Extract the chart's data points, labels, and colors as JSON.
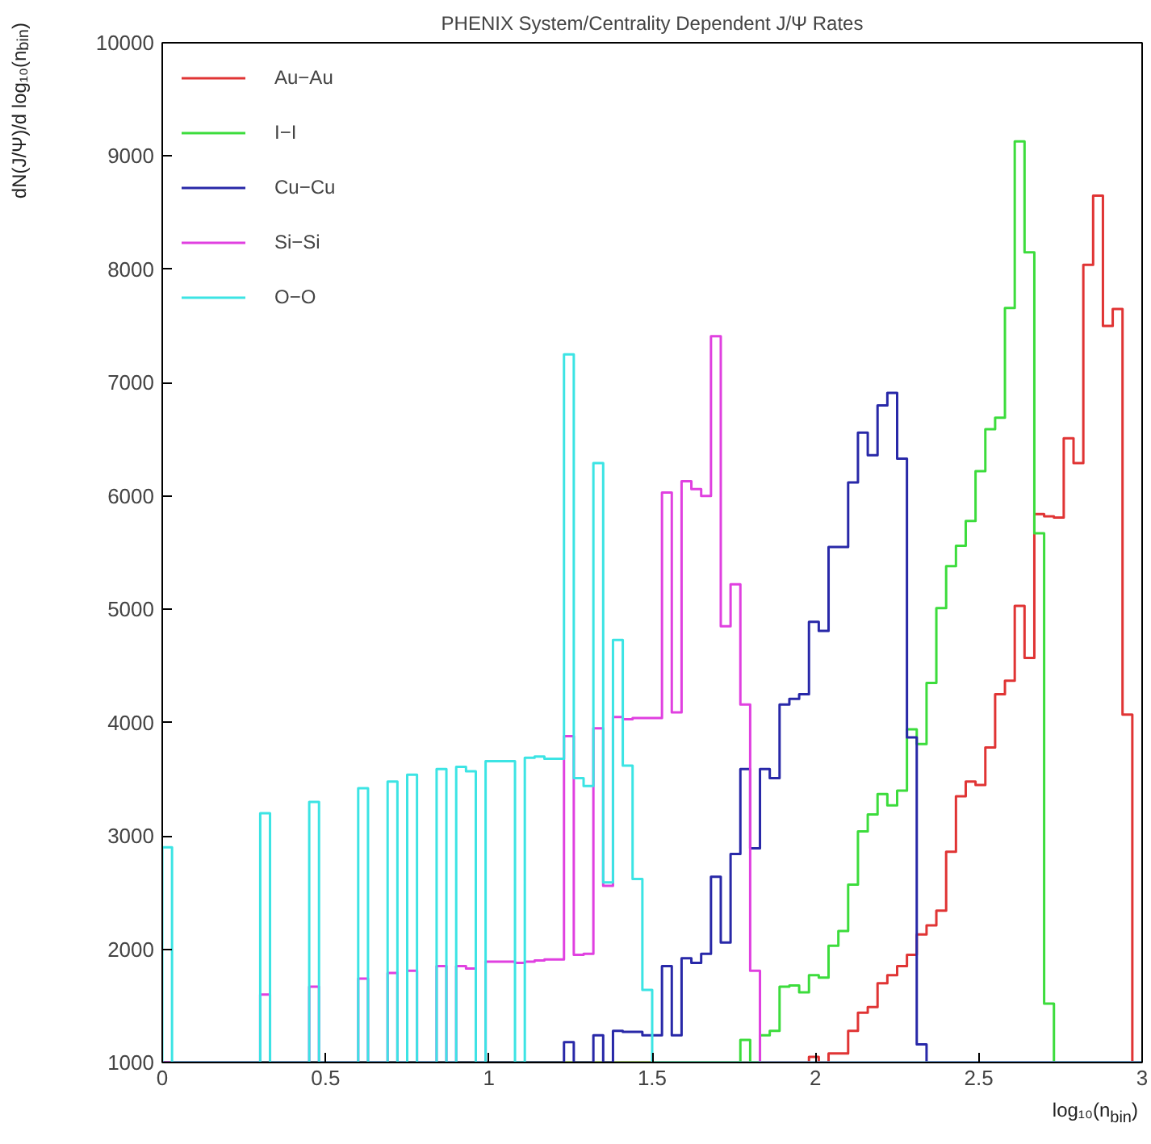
{
  "chart_data": {
    "type": "histogram",
    "title": "PHENIX System/Centrality Dependent J/Ψ Rates",
    "xlabel": "log₁₀(n$_{bin}$)",
    "ylabel": "dN(J/Ψ)/d log₁₀(n$_{bin}$)",
    "xlim": [
      0,
      3
    ],
    "ylim": [
      1000,
      10000
    ],
    "xticks": [
      0,
      0.5,
      1,
      1.5,
      2,
      2.5,
      3
    ],
    "yticks": [
      1000,
      2000,
      3000,
      4000,
      5000,
      6000,
      7000,
      8000,
      9000,
      10000
    ],
    "legend": "top left",
    "bins": [
      0,
      0.03,
      0.06,
      0.09,
      0.12,
      0.15,
      0.18,
      0.21,
      0.24,
      0.27,
      0.3,
      0.33,
      0.36,
      0.39,
      0.42,
      0.45,
      0.48,
      0.51,
      0.54,
      0.57,
      0.6,
      0.63,
      0.66,
      0.69,
      0.72,
      0.75,
      0.78,
      0.81,
      0.84,
      0.87,
      0.9,
      0.93,
      0.96,
      0.99,
      1.02,
      1.05,
      1.08,
      1.11,
      1.14,
      1.17,
      1.2,
      1.23,
      1.26,
      1.29,
      1.32,
      1.35,
      1.38,
      1.41,
      1.44,
      1.47,
      1.5,
      1.53,
      1.56,
      1.59,
      1.62,
      1.65,
      1.68,
      1.71,
      1.74,
      1.77,
      1.8,
      1.83,
      1.86,
      1.89,
      1.92,
      1.95,
      1.98,
      2.01,
      2.04,
      2.07,
      2.1,
      2.13,
      2.16,
      2.19,
      2.22,
      2.25,
      2.28,
      2.31,
      2.34,
      2.37,
      2.4,
      2.43,
      2.46,
      2.49,
      2.52,
      2.55,
      2.58,
      2.61,
      2.64,
      2.67,
      2.7,
      2.73,
      2.76,
      2.79,
      2.82,
      2.85,
      2.88,
      2.91,
      2.94,
      2.97,
      3
    ],
    "series": [
      {
        "name": "Au−Au",
        "color": "#e03434",
        "values": [
          null,
          null,
          null,
          null,
          null,
          null,
          null,
          null,
          null,
          null,
          null,
          null,
          null,
          null,
          null,
          null,
          null,
          null,
          null,
          null,
          null,
          null,
          null,
          null,
          null,
          null,
          null,
          null,
          null,
          null,
          null,
          null,
          null,
          null,
          null,
          null,
          null,
          null,
          null,
          null,
          null,
          null,
          null,
          null,
          null,
          null,
          null,
          null,
          null,
          null,
          null,
          null,
          null,
          null,
          null,
          null,
          null,
          null,
          null,
          null,
          null,
          null,
          null,
          null,
          null,
          null,
          1050,
          null,
          1080,
          1080,
          1280,
          1440,
          1490,
          1700,
          1770,
          1850,
          1950,
          2130,
          2210,
          2340,
          2860,
          3350,
          3480,
          3450,
          3780,
          4250,
          4370,
          5030,
          4570,
          5840,
          5820,
          5810,
          6510,
          6290,
          8040,
          8650,
          7500,
          7650,
          4070,
          null
        ]
      },
      {
        "name": "I−I",
        "color": "#3cdc3c",
        "values": [
          null,
          null,
          null,
          null,
          null,
          null,
          null,
          null,
          null,
          null,
          null,
          null,
          null,
          null,
          null,
          null,
          null,
          null,
          null,
          null,
          null,
          null,
          null,
          null,
          null,
          null,
          null,
          null,
          null,
          null,
          null,
          null,
          null,
          null,
          null,
          null,
          null,
          null,
          null,
          null,
          null,
          null,
          null,
          null,
          null,
          null,
          null,
          null,
          null,
          null,
          null,
          null,
          null,
          null,
          null,
          null,
          null,
          null,
          null,
          1200,
          null,
          1240,
          1280,
          1670,
          1680,
          1620,
          1770,
          1750,
          2030,
          2160,
          2570,
          3040,
          3190,
          3370,
          3270,
          3400,
          3940,
          3810,
          4350,
          5010,
          5380,
          5560,
          5780,
          6220,
          6590,
          6690,
          7660,
          9130,
          8150,
          5670,
          1520,
          null,
          null,
          null,
          null,
          null,
          null,
          null,
          null,
          null
        ]
      },
      {
        "name": "Cu−Cu",
        "color": "#2828a8",
        "values": [
          null,
          null,
          null,
          null,
          null,
          null,
          null,
          null,
          null,
          null,
          null,
          null,
          null,
          null,
          null,
          null,
          null,
          null,
          null,
          null,
          null,
          null,
          null,
          null,
          null,
          null,
          null,
          null,
          null,
          null,
          null,
          null,
          null,
          null,
          null,
          null,
          null,
          null,
          null,
          null,
          null,
          1180,
          null,
          null,
          1240,
          null,
          1280,
          1270,
          1270,
          1240,
          1240,
          1850,
          1240,
          1920,
          1880,
          1960,
          2640,
          2060,
          2840,
          3590,
          2890,
          3590,
          3510,
          4160,
          4210,
          4250,
          4890,
          4810,
          5550,
          5550,
          6120,
          6560,
          6360,
          6800,
          6910,
          6330,
          3870,
          1160,
          null,
          null,
          null,
          null,
          null,
          null,
          null,
          null,
          null,
          null,
          null,
          null,
          null,
          null,
          null,
          null,
          null,
          null,
          null,
          null,
          null,
          null
        ]
      },
      {
        "name": "Si−Si",
        "color": "#e040e0",
        "values": [
          null,
          null,
          null,
          null,
          null,
          null,
          null,
          null,
          null,
          null,
          1600,
          null,
          null,
          null,
          null,
          1670,
          null,
          null,
          null,
          null,
          1740,
          null,
          null,
          1790,
          null,
          1810,
          null,
          null,
          1850,
          null,
          1850,
          1830,
          null,
          1890,
          1890,
          1890,
          1880,
          1890,
          1900,
          1910,
          1910,
          3880,
          1950,
          1960,
          3950,
          2560,
          4050,
          4030,
          4040,
          4040,
          4040,
          6030,
          4090,
          6130,
          6060,
          6000,
          7410,
          4850,
          5220,
          4160,
          1810,
          null,
          null,
          null,
          null,
          null,
          null,
          null,
          null,
          null,
          null,
          null,
          null,
          null,
          null,
          null,
          null,
          null,
          null,
          null,
          null,
          null,
          null,
          null,
          null,
          null,
          null,
          null,
          null,
          null,
          null,
          null,
          null,
          null,
          null,
          null,
          null,
          null,
          null,
          null
        ]
      },
      {
        "name": "O−O",
        "color": "#3ce4e4",
        "values": [
          2900,
          null,
          null,
          null,
          null,
          null,
          null,
          null,
          null,
          null,
          3200,
          null,
          null,
          null,
          null,
          3300,
          null,
          null,
          null,
          null,
          3420,
          null,
          null,
          3480,
          null,
          3540,
          null,
          null,
          3590,
          null,
          3610,
          3570,
          null,
          3660,
          3660,
          3660,
          null,
          3690,
          3700,
          3680,
          3680,
          7250,
          3510,
          3440,
          6290,
          2590,
          4730,
          3620,
          2620,
          1640,
          null,
          null,
          null,
          null,
          null,
          null,
          null,
          null,
          null,
          null,
          null,
          null,
          null,
          null,
          null,
          null,
          null,
          null,
          null,
          null,
          null,
          null,
          null,
          null,
          null,
          null,
          null,
          null,
          null,
          null,
          null,
          null,
          null,
          null,
          null,
          null,
          null,
          null,
          null,
          null,
          null,
          null,
          null,
          null,
          null,
          null,
          null,
          null,
          null,
          null
        ]
      }
    ]
  }
}
